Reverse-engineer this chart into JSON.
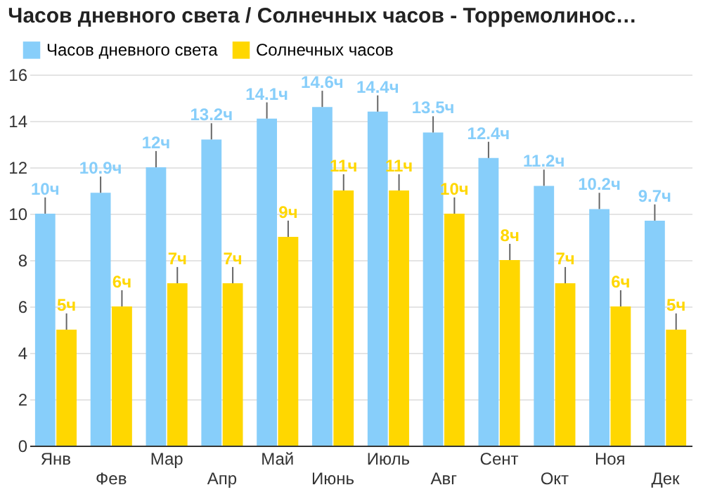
{
  "chart_data": {
    "type": "bar",
    "title": "Часов дневного света / Солнечных часов - Торремолинос…",
    "categories": [
      "Янв",
      "Фев",
      "Мар",
      "Апр",
      "Май",
      "Июнь",
      "Июль",
      "Авг",
      "Сент",
      "Окт",
      "Ноя",
      "Дек"
    ],
    "series": [
      {
        "name": "Часов дневного света",
        "color": "#87cefa",
        "values": [
          10,
          10.9,
          12,
          13.2,
          14.1,
          14.6,
          14.4,
          13.5,
          12.4,
          11.2,
          10.2,
          9.7
        ],
        "value_labels": [
          "10ч",
          "10.9ч",
          "12ч",
          "13.2ч",
          "14.1ч",
          "14.6ч",
          "14.4ч",
          "13.5ч",
          "12.4ч",
          "11.2ч",
          "10.2ч",
          "9.7ч"
        ],
        "errors": [
          [
            10,
            10.7
          ],
          [
            10.9,
            11.6
          ],
          [
            12,
            12.7
          ],
          [
            13.2,
            13.9
          ],
          [
            14.1,
            14.8
          ],
          [
            14.6,
            15.3
          ],
          [
            14.4,
            15.1
          ],
          [
            13.5,
            14.2
          ],
          [
            12.4,
            13.1
          ],
          [
            11.2,
            11.9
          ],
          [
            10.2,
            10.9
          ],
          [
            9.7,
            10.4
          ]
        ]
      },
      {
        "name": "Солнечных часов",
        "color": "#ffd700",
        "values": [
          5,
          6,
          7,
          7,
          9,
          11,
          11,
          10,
          8,
          7,
          6,
          5
        ],
        "value_labels": [
          "5ч",
          "6ч",
          "7ч",
          "7ч",
          "9ч",
          "11ч",
          "11ч",
          "10ч",
          "8ч",
          "7ч",
          "6ч",
          "5ч"
        ],
        "errors": [
          [
            5,
            5.7
          ],
          [
            6,
            6.7
          ],
          [
            7,
            7.7
          ],
          [
            7,
            7.7
          ],
          [
            9,
            9.7
          ],
          [
            11,
            11.7
          ],
          [
            11,
            11.7
          ],
          [
            10,
            10.7
          ],
          [
            8,
            8.7
          ],
          [
            7,
            7.7
          ],
          [
            6,
            6.7
          ],
          [
            5,
            5.7
          ]
        ]
      }
    ],
    "ylim": [
      0,
      16
    ],
    "yticks": [
      0,
      2,
      4,
      6,
      8,
      10,
      12,
      14,
      16
    ],
    "grid": "y",
    "legend": "top left"
  }
}
